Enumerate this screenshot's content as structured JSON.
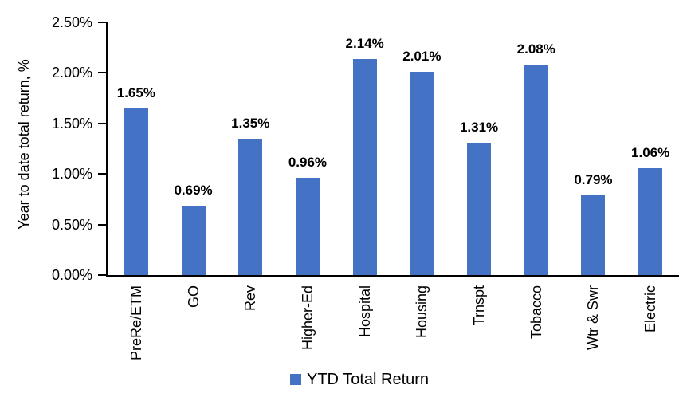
{
  "chart_data": {
    "type": "bar",
    "categories": [
      "PreRe/ETM",
      "GO",
      "Rev",
      "Higher-Ed",
      "Hospital",
      "Housing",
      "Trnspt",
      "Tobacco",
      "Wtr & Swr",
      "Electric"
    ],
    "values": [
      1.65,
      0.69,
      1.35,
      0.96,
      2.14,
      2.01,
      1.31,
      2.08,
      0.79,
      1.06
    ],
    "data_labels": [
      "1.65%",
      "0.69%",
      "1.35%",
      "0.96%",
      "2.14%",
      "2.01%",
      "1.31%",
      "2.08%",
      "0.79%",
      "1.06%"
    ],
    "xlabel": "",
    "ylabel": "Year to date total return, %",
    "ylim": [
      0,
      2.5
    ],
    "ytick_step": 0.5,
    "ytick_labels": [
      "0.00%",
      "0.50%",
      "1.00%",
      "1.50%",
      "2.00%",
      "2.50%"
    ],
    "grid": false,
    "legend": {
      "label": "YTD Total Return",
      "position": "bottom-center"
    },
    "bar_color": "#4472C4",
    "axis_color": "#000000",
    "text_color": "#000000",
    "background_color": "#FFFFFF"
  }
}
